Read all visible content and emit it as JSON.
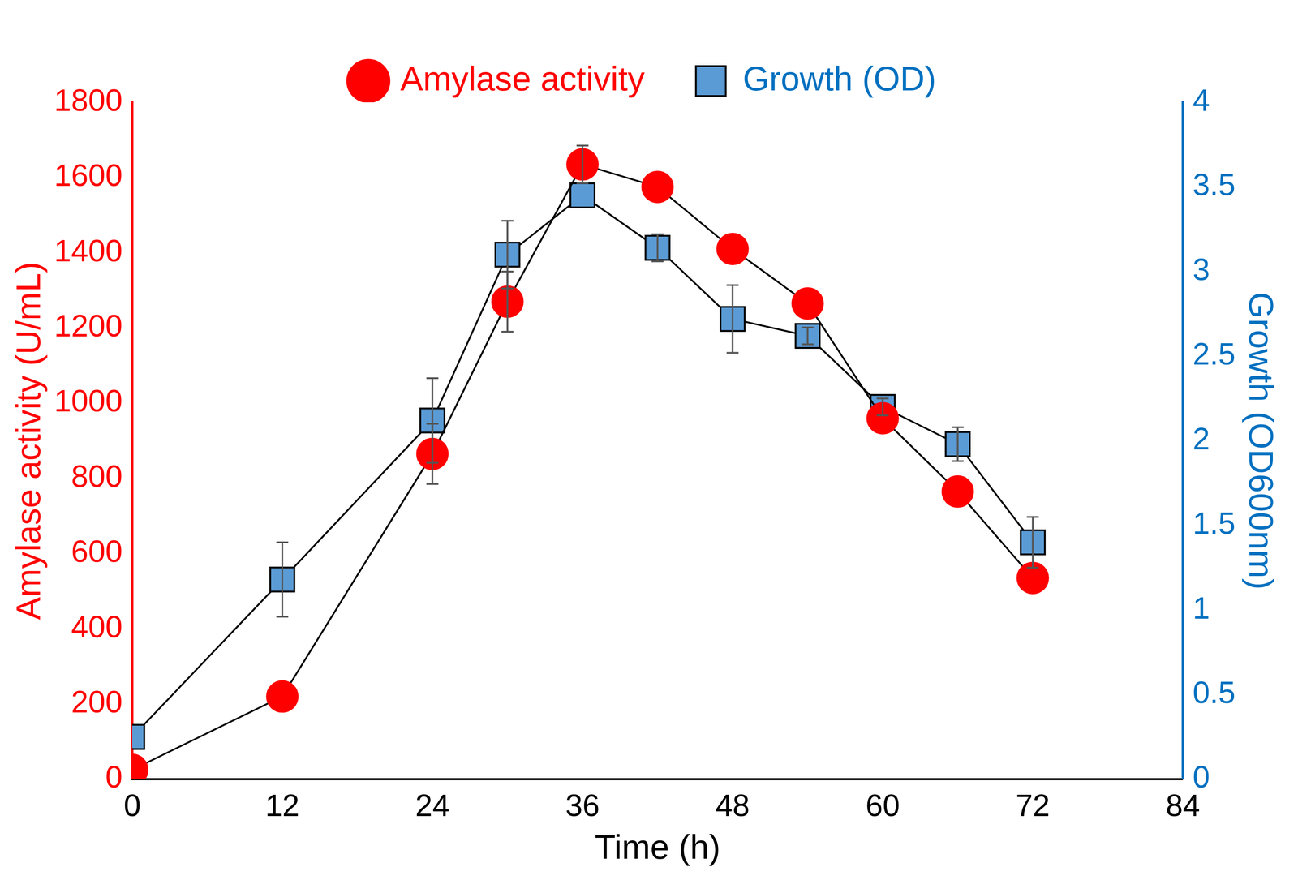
{
  "chart_data": {
    "type": "line",
    "x_label": "Time (h)",
    "y_label": "Amylase activity (U/mL)",
    "y2_label": "Growth (OD600nm)",
    "x": [
      0,
      12,
      24,
      30,
      36,
      42,
      48,
      54,
      60,
      66,
      72
    ],
    "series": [
      {
        "name": "Amylase activity",
        "color": "#ff0000",
        "marker": "circle",
        "line_style": "solid",
        "axis": "y",
        "values": [
          25,
          220,
          865,
          1270,
          1635,
          1575,
          1410,
          1265,
          960,
          765,
          535
        ],
        "errors": [
          null,
          null,
          80,
          80,
          50,
          null,
          null,
          null,
          null,
          null,
          null
        ]
      },
      {
        "name": "Growth (OD)",
        "color": "#5b9bd5",
        "marker": "square",
        "line_style": "solid",
        "axis": "y2",
        "values": [
          0.25,
          1.18,
          2.12,
          3.1,
          3.45,
          3.14,
          2.72,
          2.62,
          2.2,
          1.98,
          1.4
        ],
        "errors": [
          null,
          0.22,
          0.25,
          0.2,
          null,
          0.08,
          0.2,
          0.05,
          0.05,
          0.1,
          0.15
        ]
      }
    ],
    "xlim": [
      0,
      84
    ],
    "xticks": [
      0,
      12,
      24,
      36,
      48,
      60,
      72,
      84
    ],
    "ylim": [
      0,
      1800
    ],
    "yticks": [
      0,
      200,
      400,
      600,
      800,
      1000,
      1200,
      1400,
      1600,
      1800
    ],
    "y2lim": [
      0,
      4
    ],
    "y2ticks": [
      0,
      0.5,
      1,
      1.5,
      2,
      2.5,
      3,
      3.5,
      4
    ],
    "grid": false,
    "legend": "top"
  }
}
